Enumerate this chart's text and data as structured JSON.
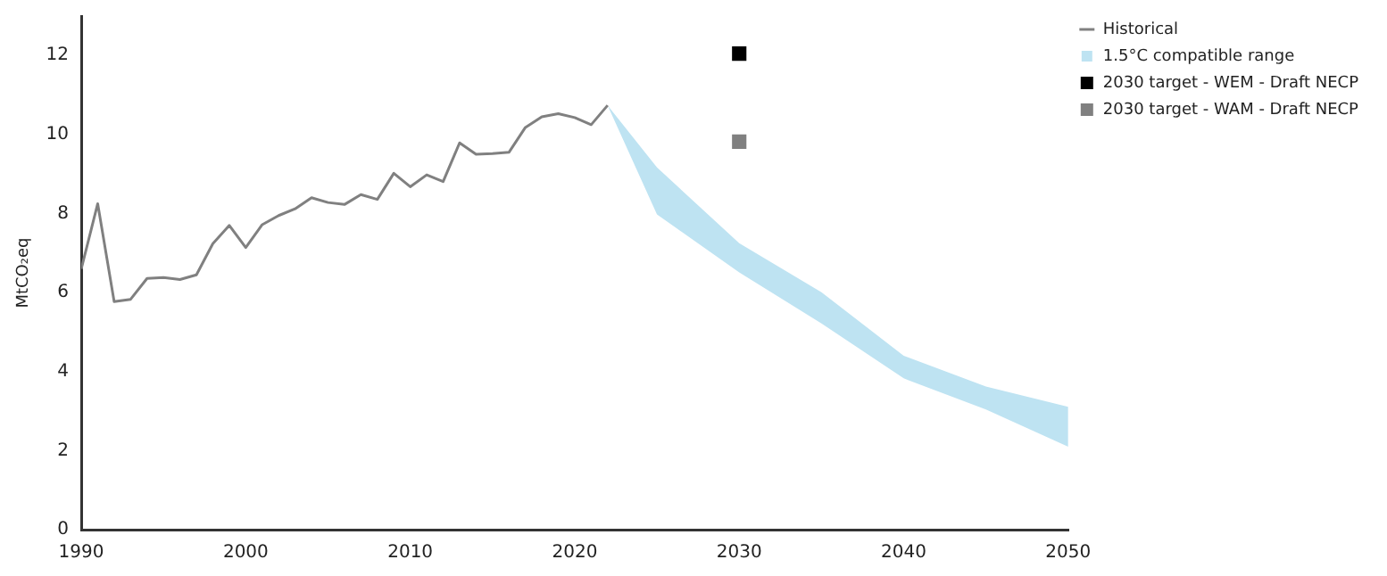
{
  "chart_data": {
    "type": "line",
    "ylabel": "MtCO₂eq",
    "xlim": [
      1990,
      2050
    ],
    "xticks": [
      1990,
      2000,
      2010,
      2020,
      2030,
      2040,
      2050
    ],
    "ylim": [
      0,
      13
    ],
    "yticks": [
      0,
      2,
      4,
      6,
      8,
      10,
      12
    ],
    "grid": false,
    "legend": "top right",
    "marker": "none",
    "line_style": "solid",
    "series": [
      {
        "name": "Historical",
        "type": "line",
        "color": "#808080",
        "x": [
          1990,
          1991,
          1992,
          1993,
          1994,
          1995,
          1996,
          1997,
          1998,
          1999,
          2000,
          2001,
          2002,
          2003,
          2004,
          2005,
          2006,
          2007,
          2008,
          2009,
          2010,
          2011,
          2012,
          2013,
          2014,
          2015,
          2016,
          2017,
          2018,
          2019,
          2020,
          2021,
          2022
        ],
        "values": [
          6.6,
          8.25,
          5.77,
          5.83,
          6.36,
          6.38,
          6.33,
          6.45,
          7.24,
          7.7,
          7.14,
          7.72,
          7.95,
          8.12,
          8.4,
          8.28,
          8.23,
          8.48,
          8.36,
          9.02,
          8.68,
          8.98,
          8.81,
          9.79,
          9.5,
          9.52,
          9.55,
          10.18,
          10.45,
          10.53,
          10.43,
          10.25,
          10.74
        ]
      },
      {
        "name": "1.5°C compatible range",
        "type": "line",
        "color": "#bee3f2",
        "x": [
          2022,
          2025,
          2030,
          2035,
          2040,
          2045,
          2050
        ],
        "values": [
          null,
          null,
          null,
          null,
          null,
          null,
          null
        ],
        "lower": [
          10.74,
          7.98,
          6.51,
          5.22,
          3.83,
          3.04,
          2.1
        ],
        "upper": [
          10.74,
          9.17,
          7.25,
          6.01,
          4.4,
          3.62,
          3.11
        ]
      },
      {
        "name": "2030 target - WEM - Draft NECP",
        "type": "scatter",
        "marker": "square",
        "color": "#000000",
        "x": [
          2030
        ],
        "values": [
          12.05
        ]
      },
      {
        "name": "2030 target - WAM - Draft NECP",
        "type": "scatter",
        "marker": "square",
        "color": "#808080",
        "x": [
          2030
        ],
        "values": [
          9.82
        ]
      }
    ]
  }
}
